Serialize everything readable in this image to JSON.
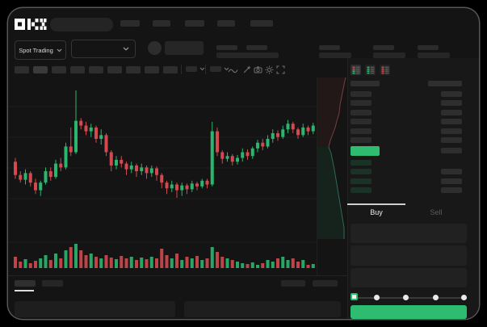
{
  "brand": {
    "name": "OKX"
  },
  "market_bar": {
    "market_selector_label": "Spot Trading"
  },
  "trade_panel": {
    "buy_tab_label": "Buy",
    "sell_tab_label": "Sell",
    "field_count": 3,
    "slider_stops": 5,
    "active_slider_stop": 0
  },
  "order_book": {
    "view_toggles": [
      "split-view",
      "bids-view",
      "asks-view"
    ],
    "active_toggle": 0,
    "ask_rows": 6,
    "bid_rows": 4,
    "bid_right_rows": [
      1,
      2,
      3
    ],
    "last_price_highlight": "up"
  },
  "colors": {
    "up_green": "#2bb56e",
    "down_red": "#d2494f",
    "buy_button_green": "#2ebd70",
    "bid_row_tint": "rgba(46,189,112,0.16)",
    "skeleton_gray": "#2b2b2b"
  },
  "chart_data": {
    "type": "candlestick",
    "title": "",
    "xlabel": "",
    "ylabel": "",
    "grid": "faint-horizontal",
    "price_range": [
      14,
      127
    ],
    "candles_ohlc": [
      [
        52,
        56,
        34,
        38
      ],
      [
        38,
        42,
        30,
        33
      ],
      [
        33,
        44,
        28,
        40
      ],
      [
        40,
        42,
        26,
        30
      ],
      [
        30,
        34,
        18,
        22
      ],
      [
        22,
        32,
        16,
        30
      ],
      [
        30,
        46,
        28,
        42
      ],
      [
        42,
        46,
        32,
        36
      ],
      [
        36,
        54,
        34,
        50
      ],
      [
        50,
        56,
        42,
        46
      ],
      [
        46,
        72,
        44,
        68
      ],
      [
        68,
        88,
        58,
        62
      ],
      [
        62,
        127,
        60,
        95
      ],
      [
        95,
        98,
        86,
        90
      ],
      [
        90,
        94,
        80,
        84
      ],
      [
        84,
        92,
        78,
        88
      ],
      [
        88,
        90,
        72,
        76
      ],
      [
        76,
        86,
        70,
        80
      ],
      [
        80,
        82,
        58,
        62
      ],
      [
        62,
        64,
        42,
        48
      ],
      [
        48,
        58,
        44,
        54
      ],
      [
        54,
        58,
        46,
        50
      ],
      [
        50,
        52,
        38,
        44
      ],
      [
        44,
        52,
        40,
        48
      ],
      [
        48,
        50,
        36,
        42
      ],
      [
        42,
        50,
        38,
        46
      ],
      [
        46,
        48,
        34,
        40
      ],
      [
        40,
        48,
        36,
        45
      ],
      [
        45,
        47,
        32,
        38
      ],
      [
        38,
        40,
        24,
        30
      ],
      [
        30,
        32,
        18,
        24
      ],
      [
        24,
        32,
        20,
        28
      ],
      [
        28,
        30,
        14,
        22
      ],
      [
        22,
        30,
        16,
        27
      ],
      [
        27,
        29,
        18,
        23
      ],
      [
        23,
        32,
        20,
        29
      ],
      [
        29,
        31,
        22,
        26
      ],
      [
        26,
        34,
        24,
        32
      ],
      [
        32,
        34,
        24,
        28
      ],
      [
        28,
        94,
        26,
        84
      ],
      [
        84,
        88,
        58,
        62
      ],
      [
        62,
        64,
        50,
        55
      ],
      [
        55,
        62,
        52,
        58
      ],
      [
        58,
        60,
        48,
        52
      ],
      [
        52,
        59,
        49,
        56
      ],
      [
        56,
        66,
        52,
        62
      ],
      [
        62,
        65,
        54,
        58
      ],
      [
        58,
        68,
        55,
        66
      ],
      [
        66,
        75,
        62,
        72
      ],
      [
        72,
        76,
        64,
        68
      ],
      [
        68,
        80,
        66,
        76
      ],
      [
        76,
        86,
        72,
        82
      ],
      [
        82,
        85,
        74,
        78
      ],
      [
        78,
        90,
        76,
        86
      ],
      [
        86,
        96,
        82,
        92
      ],
      [
        92,
        94,
        82,
        86
      ],
      [
        86,
        88,
        76,
        80
      ],
      [
        80,
        92,
        78,
        88
      ],
      [
        88,
        90,
        80,
        84
      ],
      [
        84,
        93,
        81,
        90
      ]
    ],
    "volumes": [
      14,
      8,
      11,
      6,
      9,
      12,
      16,
      10,
      18,
      12,
      22,
      26,
      30,
      22,
      16,
      18,
      14,
      12,
      16,
      13,
      11,
      15,
      12,
      14,
      10,
      13,
      11,
      14,
      12,
      24,
      16,
      12,
      18,
      10,
      14,
      12,
      15,
      10,
      12,
      26,
      20,
      14,
      12,
      10,
      8,
      6,
      5,
      7,
      4,
      6,
      10,
      8,
      12,
      14,
      10,
      12,
      8,
      10,
      4,
      5
    ],
    "depth": {
      "asks": [
        [
          34,
          4
        ],
        [
          32,
          14
        ],
        [
          30,
          24
        ],
        [
          28,
          34
        ],
        [
          27,
          44
        ],
        [
          24,
          54
        ],
        [
          22,
          62
        ],
        [
          19,
          70
        ],
        [
          16,
          78
        ],
        [
          14,
          86
        ]
      ],
      "bids": [
        [
          14,
          86
        ],
        [
          17,
          94
        ],
        [
          19,
          104
        ],
        [
          21,
          114
        ],
        [
          23,
          126
        ],
        [
          25,
          138
        ],
        [
          27,
          150
        ],
        [
          29,
          162
        ],
        [
          31,
          174
        ],
        [
          33,
          186
        ],
        [
          33,
          200
        ]
      ]
    }
  }
}
